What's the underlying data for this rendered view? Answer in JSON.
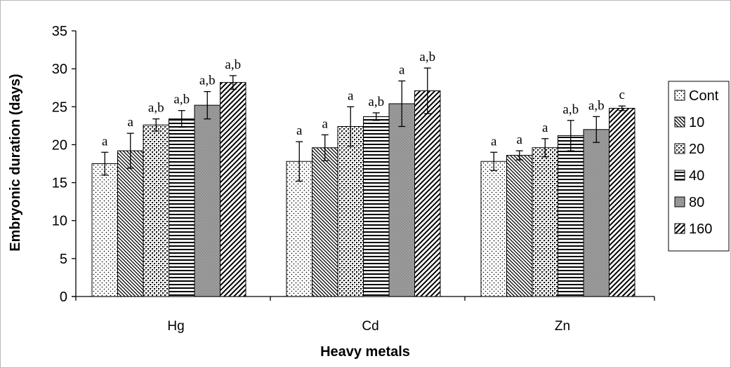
{
  "chart_data": {
    "type": "bar",
    "xlabel": "Heavy metals",
    "ylabel": "Embryonic duration (days)",
    "ylim": [
      0,
      35
    ],
    "yticks": [
      0,
      5,
      10,
      15,
      20,
      25,
      30,
      35
    ],
    "categories": [
      "Hg",
      "Cd",
      "Zn"
    ],
    "grid": false,
    "legend_position": "right",
    "series": [
      {
        "name": "Cont",
        "pattern": "dots",
        "values": [
          17.5,
          17.8,
          17.8
        ],
        "errors": [
          1.5,
          2.6,
          1.2
        ],
        "labels": [
          "a",
          "a",
          "a"
        ]
      },
      {
        "name": "10",
        "pattern": "diag-down",
        "values": [
          19.2,
          19.6,
          18.6
        ],
        "errors": [
          2.3,
          1.7,
          0.6
        ],
        "labels": [
          "a",
          "a",
          "a"
        ]
      },
      {
        "name": "20",
        "pattern": "checker",
        "values": [
          22.6,
          22.4,
          19.6
        ],
        "errors": [
          0.8,
          2.6,
          1.2
        ],
        "labels": [
          "a,b",
          "a",
          "a"
        ]
      },
      {
        "name": "40",
        "pattern": "horizontal",
        "values": [
          23.4,
          23.7,
          21.2
        ],
        "errors": [
          1.1,
          0.5,
          2.0
        ],
        "labels": [
          "a,b",
          "a,b",
          "a,b"
        ]
      },
      {
        "name": "80",
        "pattern": "solid-grey",
        "values": [
          25.2,
          25.4,
          22.0
        ],
        "errors": [
          1.8,
          3.0,
          1.7
        ],
        "labels": [
          "a,b",
          "a",
          "a,b"
        ]
      },
      {
        "name": "160",
        "pattern": "diag-up",
        "values": [
          28.2,
          27.1,
          24.8
        ],
        "errors": [
          0.9,
          3.0,
          0.3
        ],
        "labels": [
          "a,b",
          "a,b",
          "c"
        ]
      }
    ]
  }
}
